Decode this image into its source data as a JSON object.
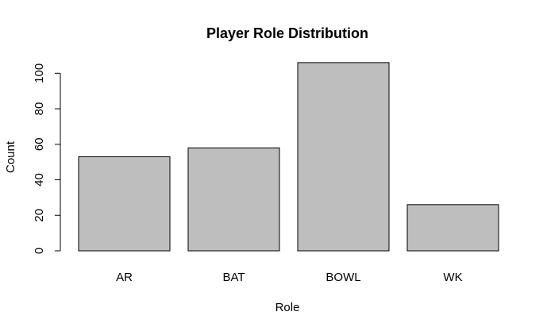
{
  "chart_data": {
    "type": "bar",
    "title": "Player Role Distribution",
    "xlabel": "Role",
    "ylabel": "Count",
    "categories": [
      "AR",
      "BAT",
      "BOWL",
      "WK"
    ],
    "values": [
      53,
      58,
      106,
      26
    ],
    "ylim": [
      0,
      110
    ],
    "yticks": [
      0,
      20,
      40,
      60,
      80,
      100
    ],
    "bar_color": "#bebebe",
    "border_color": "#000000",
    "grid": false,
    "legend": false
  }
}
